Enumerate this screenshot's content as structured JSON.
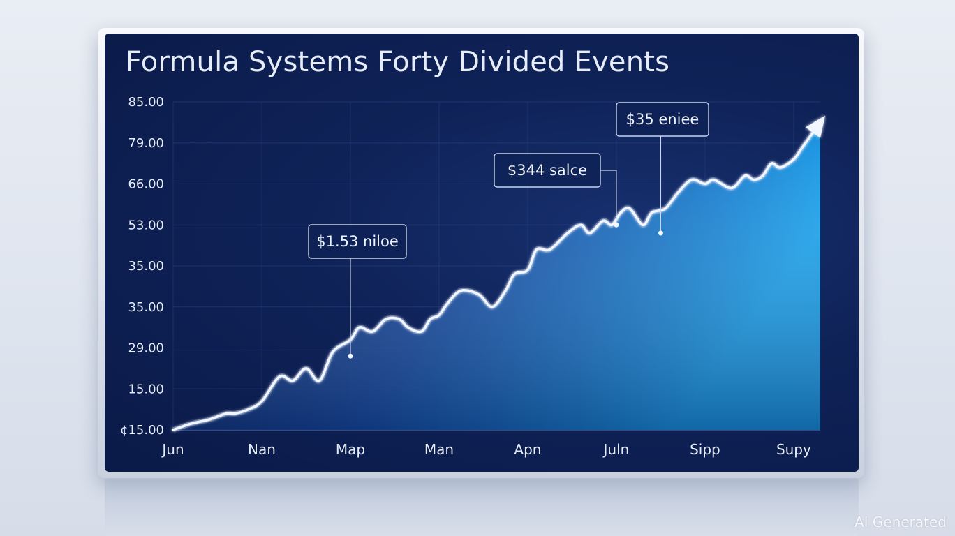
{
  "chart_data": {
    "type": "area",
    "title": "Formula Systems Forty Divided Events",
    "xlabel": "",
    "ylabel": "",
    "y_tick_labels": [
      "¢15.00",
      "15.00",
      "29.00",
      "35.00",
      "35.00",
      "53.00",
      "66.00",
      "79.00",
      "85.00"
    ],
    "x_tick_labels": [
      "Jun",
      "Nan",
      "Map",
      "Man",
      "Apn",
      "Juln",
      "Sipp",
      "Supy"
    ],
    "ylim": [
      10,
      90
    ],
    "y_axis_note": "tick labels are printed inconsistently; values are read on a uniform 10–90 scale",
    "grid": true,
    "series": [
      {
        "x": [
          0,
          0.2,
          0.4,
          0.6,
          0.7,
          0.85,
          1.0,
          1.2,
          1.35,
          1.5,
          1.65,
          1.8,
          2.0,
          2.1,
          2.25,
          2.4,
          2.55,
          2.65,
          2.8,
          2.9,
          3.0,
          3.1,
          3.25,
          3.45,
          3.6,
          3.75,
          3.85,
          4.0,
          4.1,
          4.25,
          4.45,
          4.6,
          4.7,
          4.85,
          4.95,
          5.05,
          5.15,
          5.3,
          5.4,
          5.55,
          5.7,
          5.85,
          6.0,
          6.1,
          6.3,
          6.45,
          6.55,
          6.65,
          6.75,
          6.85,
          7.0,
          7.1,
          7.3
        ],
        "values": [
          10,
          11.5,
          12.5,
          14,
          14,
          15,
          17,
          23,
          22,
          25,
          22,
          29,
          32,
          35,
          34,
          37,
          37,
          35,
          34,
          37,
          38,
          41,
          44,
          43,
          40,
          44,
          48,
          49,
          54,
          54,
          58,
          60,
          58,
          61,
          60,
          63,
          64,
          60,
          63,
          64,
          68,
          71,
          70,
          71,
          69,
          72,
          71,
          72,
          75,
          74,
          76,
          79,
          85
        ]
      }
    ],
    "annotations": [
      {
        "label": "$1.53 niloe",
        "x": 2.0,
        "value": 28
      },
      {
        "label": "$344 salce",
        "x": 5.0,
        "value": 60
      },
      {
        "label": "$35 eniee",
        "x": 5.5,
        "value": 58
      }
    ],
    "colors": {
      "panel": "#0f2257",
      "line": "#f2f6ff",
      "area_top": "#1aa3f0",
      "area_bottom": "#0d2a6e",
      "grid": "#2c4685",
      "text": "#e6edf9"
    }
  },
  "watermark": "AI Generated"
}
